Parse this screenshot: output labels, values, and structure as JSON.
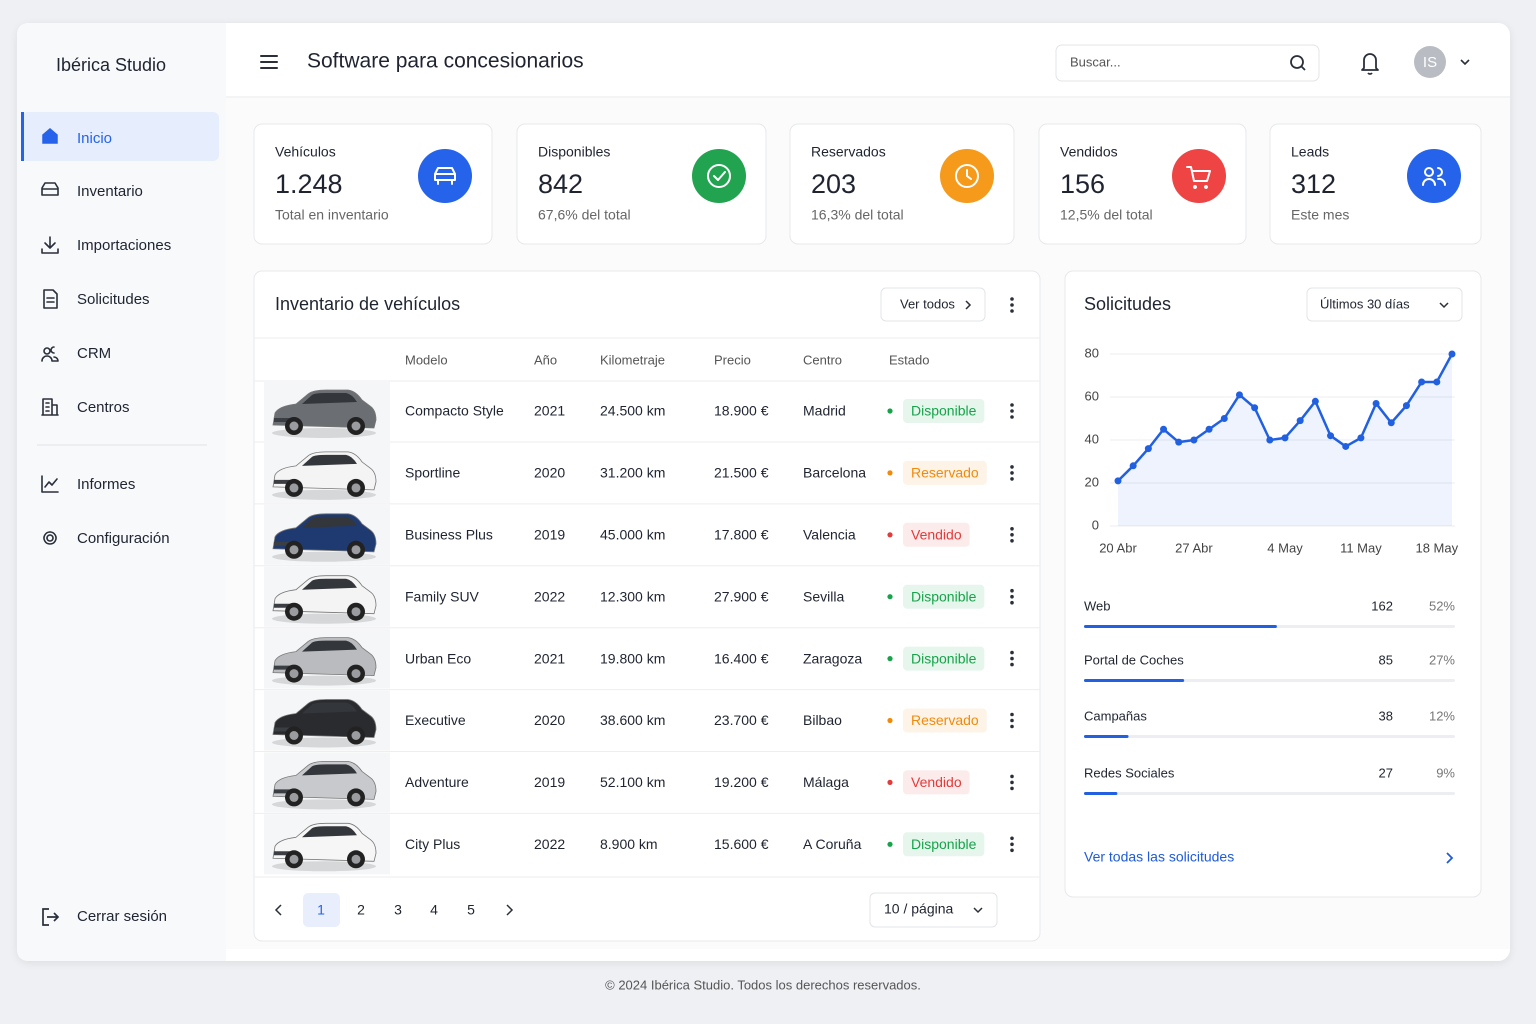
{
  "brand": "Ibérica Studio",
  "nav": {
    "items": [
      "Inicio",
      "Inventario",
      "Importaciones",
      "Solicitudes",
      "CRM",
      "Centros",
      "Informes",
      "Configuración"
    ],
    "logout": "Cerrar sesión"
  },
  "header": {
    "title": "Software para concesionarios",
    "search": "Buscar...",
    "avatar": "IS"
  },
  "stats": [
    {
      "label": "Vehículos",
      "value": "1.248",
      "note": "Total en inventario",
      "color": "#2563eb"
    },
    {
      "label": "Disponibles",
      "value": "842",
      "note": "67,6% del total",
      "color": "#22a350"
    },
    {
      "label": "Reservados",
      "value": "203",
      "note": "16,3% del total",
      "color": "#f59a1b"
    },
    {
      "label": "Vendidos",
      "value": "156",
      "note": "12,5% del total",
      "color": "#ee4444"
    },
    {
      "label": "Leads",
      "value": "312",
      "note": "Este mes",
      "color": "#2563eb"
    }
  ],
  "inventory": {
    "title": "Inventario de vehículos",
    "view_all": "Ver todos",
    "columns": [
      "Modelo",
      "Año",
      "Kilometraje",
      "Precio",
      "Centro",
      "Estado"
    ],
    "rows": [
      {
        "model": "Compacto Style",
        "year": 2021,
        "km": "24.500 km",
        "price": "18.900 €",
        "center": "Madrid",
        "status": "Disponible",
        "status_color": "#16a34a"
      },
      {
        "model": "Sportline",
        "year": 2020,
        "km": "31.200 km",
        "price": "21.500 €",
        "center": "Barcelona",
        "status": "Reservado",
        "status_color": "#f08a0c"
      },
      {
        "model": "Business Plus",
        "year": 2019,
        "km": "45.000 km",
        "price": "17.800 €",
        "center": "Valencia",
        "status": "Vendido",
        "status_color": "#e23b3b"
      },
      {
        "model": "Family SUV",
        "year": 2022,
        "km": "12.300 km",
        "price": "27.900 €",
        "center": "Sevilla",
        "status": "Disponible",
        "status_color": "#16a34a"
      },
      {
        "model": "Urban Eco",
        "year": 2021,
        "km": "19.800 km",
        "price": "16.400 €",
        "center": "Zaragoza",
        "status": "Disponible",
        "status_color": "#16a34a"
      },
      {
        "model": "Executive",
        "year": 2020,
        "km": "38.600 km",
        "price": "23.700 €",
        "center": "Bilbao",
        "status": "Reservado",
        "status_color": "#f08a0c"
      },
      {
        "model": "Adventure",
        "year": 2019,
        "km": "52.100 km",
        "price": "19.200 €",
        "center": "Málaga",
        "status": "Vendido",
        "status_color": "#e23b3b"
      },
      {
        "model": "City Plus",
        "year": 2022,
        "km": "8.900 km",
        "price": "15.600 €",
        "center": "A Coruña",
        "status": "Disponible",
        "status_color": "#16a34a"
      }
    ],
    "pages": [
      "1",
      "2",
      "3",
      "4",
      "5"
    ],
    "per_page": "10 / página"
  },
  "chart_data": {
    "type": "line",
    "title": "Solicitudes",
    "categories": [
      "20 Abr",
      null,
      null,
      null,
      null,
      "27 Abr",
      null,
      null,
      null,
      null,
      null,
      "4 May",
      null,
      null,
      null,
      null,
      "11 May",
      null,
      null,
      null,
      null,
      "18 May",
      null
    ],
    "values": [
      21,
      28,
      36,
      45,
      39,
      40,
      45,
      50,
      61,
      55,
      40,
      41,
      49,
      58,
      42,
      37,
      41,
      57,
      48,
      56,
      67,
      67,
      80
    ],
    "color": "#2160e0",
    "ylim": [
      0,
      80
    ],
    "yticks": [
      0,
      20,
      40,
      60,
      80
    ],
    "grid": true
  },
  "requests": {
    "period": "Últimos 30 días",
    "sources": [
      {
        "name": "Web",
        "value": 162,
        "share": 52,
        "share_label": "52%"
      },
      {
        "name": "Portal de Coches",
        "value": 85,
        "share": 27,
        "share_label": "27%"
      },
      {
        "name": "Campañas",
        "value": 38,
        "share": 12,
        "share_label": "12%"
      },
      {
        "name": "Redes Sociales",
        "value": 27,
        "share": 9,
        "share_label": "9%"
      }
    ],
    "link": "Ver todas las solicitudes"
  },
  "footer": "© 2024 Ibérica Studio. Todos los derechos reservados."
}
